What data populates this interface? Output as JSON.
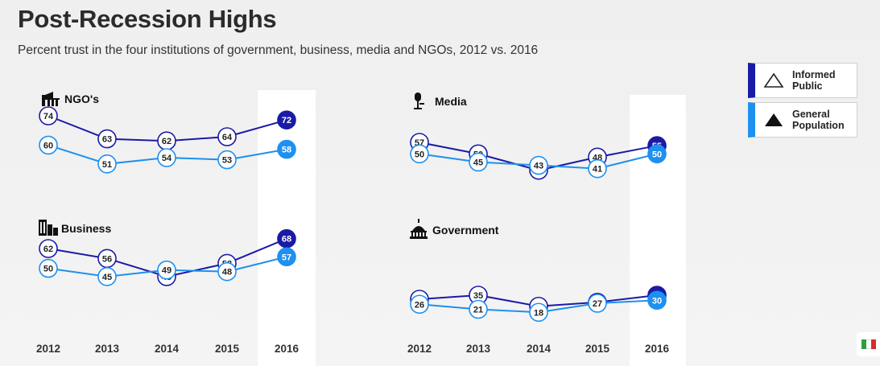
{
  "title": "Post-Recession Highs",
  "subtitle": "Percent trust in the four institutions of government, business, media and NGOs, 2012 vs. 2016",
  "legend": [
    {
      "label_line1": "Informed",
      "label_line2": "Public",
      "icon": "outline-triangle-icon"
    },
    {
      "label_line1": "General",
      "label_line2": "Population",
      "icon": "filled-triangle-icon"
    }
  ],
  "colors": {
    "informed_public": "#1a1aa6",
    "general_population": "#1e90ef",
    "highlight_column": "#ffffff"
  },
  "chart_data": [
    {
      "type": "line",
      "panel": "NGO's",
      "icon": "ngo-icon",
      "x": [
        "2012",
        "2013",
        "2014",
        "2015",
        "2016"
      ],
      "series": [
        {
          "name": "Informed Public",
          "values": [
            74,
            63,
            62,
            64,
            72
          ]
        },
        {
          "name": "General Population",
          "values": [
            60,
            51,
            54,
            53,
            58
          ]
        }
      ],
      "highlight": "2016"
    },
    {
      "type": "line",
      "panel": "Media",
      "icon": "microphone-icon",
      "x": [
        "2012",
        "2013",
        "2014",
        "2015",
        "2016"
      ],
      "series": [
        {
          "name": "Informed Public",
          "values": [
            57,
            50,
            40,
            48,
            55
          ]
        },
        {
          "name": "General Population",
          "values": [
            50,
            45,
            43,
            41,
            50
          ]
        }
      ],
      "highlight": "2016"
    },
    {
      "type": "line",
      "panel": "Business",
      "icon": "building-icon",
      "x": [
        "2012",
        "2013",
        "2014",
        "2015",
        "2016"
      ],
      "series": [
        {
          "name": "Informed Public",
          "values": [
            62,
            56,
            45,
            53,
            68
          ]
        },
        {
          "name": "General Population",
          "values": [
            50,
            45,
            49,
            48,
            57
          ]
        }
      ],
      "highlight": "2016"
    },
    {
      "type": "line",
      "panel": "Government",
      "icon": "capitol-icon",
      "x": [
        "2012",
        "2013",
        "2014",
        "2015",
        "2016"
      ],
      "series": [
        {
          "name": "Informed Public",
          "values": [
            31,
            35,
            24,
            28,
            35
          ]
        },
        {
          "name": "General Population",
          "values": [
            26,
            21,
            18,
            27,
            30
          ]
        }
      ],
      "highlight": "2016"
    }
  ]
}
